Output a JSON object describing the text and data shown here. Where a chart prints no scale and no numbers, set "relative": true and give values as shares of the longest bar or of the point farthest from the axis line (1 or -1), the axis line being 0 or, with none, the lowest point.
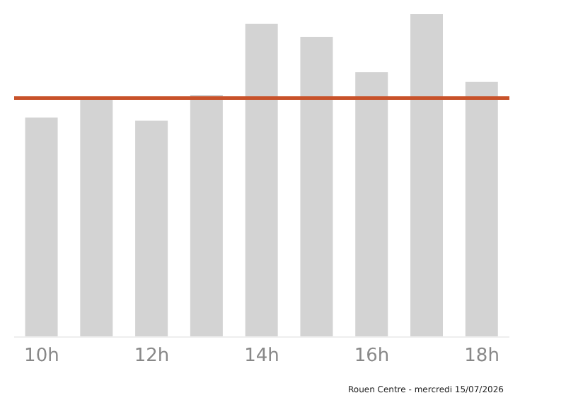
{
  "chart_data": {
    "type": "bar",
    "relative": true,
    "categories": [
      "10h",
      null,
      "12h",
      null,
      "14h",
      null,
      "16h",
      null,
      "18h"
    ],
    "values": [
      0.68,
      0.74,
      0.67,
      0.75,
      0.97,
      0.93,
      0.82,
      1,
      0.79
    ],
    "color": "#d3d3d3",
    "ref_lines": [
      {
        "axis": "y",
        "value": 0.74,
        "color": "#c8522a"
      }
    ],
    "annotations": [
      "Rouen Centre - mercredi 15/07/2026"
    ],
    "grid": false,
    "legend": false
  }
}
